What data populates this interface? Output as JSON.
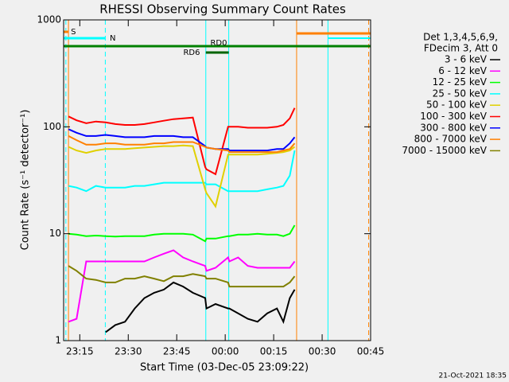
{
  "chart_data": {
    "type": "line",
    "title": "RHESSI Observing Summary Count Rates",
    "x_label": "Start Time (03-Dec-05 23:09:22)",
    "y_label": "Count Rate (s⁻¹ detector⁻¹)",
    "legend_header": [
      "Det 1,3,4,5,6,9,",
      "FDecim 3, Att 0"
    ],
    "timestamp": "21-Oct-2021 18:35",
    "log_y": true,
    "legend": "right",
    "xlim": [
      10,
      105
    ],
    "ylim": [
      1,
      1000
    ],
    "xticks": [
      {
        "value": 15,
        "label": "23:15"
      },
      {
        "value": 30,
        "label": "23:30"
      },
      {
        "value": 45,
        "label": "23:45"
      },
      {
        "value": 60,
        "label": "00:00"
      },
      {
        "value": 75,
        "label": "00:15"
      },
      {
        "value": 90,
        "label": "00:30"
      },
      {
        "value": 105,
        "label": "00:45"
      }
    ],
    "yticks": [
      1,
      10,
      100,
      1000
    ],
    "x": [
      11.5,
      14,
      17,
      20,
      23,
      26,
      29,
      32,
      35,
      38,
      41,
      44,
      47,
      50,
      53.8,
      54.2,
      57,
      60.9,
      61.3,
      64,
      67,
      70,
      73,
      76,
      78,
      80,
      81.5
    ],
    "series": [
      {
        "name": "3 - 6 keV",
        "color": "#000000",
        "values": [
          null,
          null,
          null,
          null,
          1.2,
          1.4,
          1.5,
          2,
          2.5,
          2.8,
          3,
          3.5,
          3.2,
          2.8,
          2.5,
          2,
          2.2,
          2,
          2,
          1.8,
          1.6,
          1.5,
          1.8,
          2,
          1.5,
          2.5,
          3
        ]
      },
      {
        "name": "6 - 12 keV",
        "color": "#ff00ff",
        "values": [
          1.5,
          1.6,
          5.5,
          5.5,
          5.5,
          5.5,
          5.5,
          5.5,
          5.5,
          6,
          6.5,
          7,
          6,
          5.5,
          5,
          4.5,
          4.8,
          6,
          5.5,
          6,
          5,
          4.8,
          4.8,
          4.8,
          4.8,
          4.8,
          5.5
        ]
      },
      {
        "name": "12 - 25 keV",
        "color": "#00ff00",
        "values": [
          10,
          9.8,
          9.5,
          9.6,
          9.5,
          9.4,
          9.5,
          9.5,
          9.5,
          9.8,
          10,
          10,
          10,
          9.8,
          8.5,
          9,
          9,
          9.5,
          9.5,
          9.8,
          9.8,
          10,
          9.8,
          9.8,
          9.5,
          10,
          12
        ]
      },
      {
        "name": "25 - 50 keV",
        "color": "#00ffff",
        "values": [
          28,
          27,
          25,
          28,
          27,
          27,
          27,
          28,
          28,
          29,
          30,
          30,
          30,
          30,
          30,
          29,
          29,
          25,
          25,
          25,
          25,
          25,
          26,
          27,
          28,
          35,
          60
        ]
      },
      {
        "name": "50 - 100 keV",
        "color": "#e0d000",
        "values": [
          65,
          60,
          57,
          60,
          62,
          62,
          62,
          63,
          64,
          65,
          66,
          66,
          67,
          66,
          26,
          24,
          18,
          55,
          55,
          55,
          55,
          55,
          56,
          57,
          58,
          60,
          65
        ]
      },
      {
        "name": "100 - 300 keV",
        "color": "#ff0000",
        "values": [
          125,
          115,
          108,
          112,
          110,
          106,
          104,
          104,
          106,
          110,
          114,
          118,
          120,
          122,
          42,
          40,
          36,
          100,
          100,
          100,
          98,
          98,
          98,
          100,
          104,
          120,
          150
        ]
      },
      {
        "name": "300 - 800 keV",
        "color": "#0000ff",
        "values": [
          95,
          88,
          82,
          82,
          84,
          82,
          80,
          80,
          80,
          82,
          82,
          82,
          80,
          80,
          66,
          64,
          62,
          62,
          60,
          60,
          60,
          60,
          60,
          62,
          62,
          70,
          80
        ]
      },
      {
        "name": "800 - 7000 keV",
        "color": "#ff8000",
        "values": [
          82,
          75,
          68,
          68,
          70,
          70,
          68,
          68,
          68,
          70,
          70,
          72,
          72,
          72,
          65,
          64,
          62,
          60,
          58,
          58,
          58,
          58,
          58,
          58,
          60,
          62,
          70
        ]
      },
      {
        "name": "7000 - 15000 keV",
        "color": "#808000",
        "values": [
          5,
          4.5,
          3.8,
          3.7,
          3.5,
          3.5,
          3.8,
          3.8,
          4,
          3.8,
          3.6,
          4,
          4,
          4.2,
          4,
          3.8,
          3.8,
          3.5,
          3.2,
          3.2,
          3.2,
          3.2,
          3.2,
          3.2,
          3.2,
          3.5,
          4
        ]
      }
    ],
    "vlines": [
      {
        "x": 10.7,
        "color": "#00ffff",
        "dashed": true
      },
      {
        "x": 11.5,
        "color": "#ff8000",
        "dashed": false
      },
      {
        "x": 22.9,
        "color": "#00ffff",
        "dashed": true
      },
      {
        "x": 54.0,
        "color": "#00ffff",
        "dashed": false
      },
      {
        "x": 61.1,
        "color": "#00ffff",
        "dashed": false
      },
      {
        "x": 82.1,
        "color": "#ff8000",
        "dashed": false
      },
      {
        "x": 91.8,
        "color": "#00ffff",
        "dashed": false
      },
      {
        "x": 104.4,
        "color": "#ff8000",
        "dashed": true
      }
    ],
    "flags": [
      {
        "label": "S",
        "start": 10,
        "end": 11.5,
        "color": "#ff8000"
      },
      {
        "label": "N",
        "start": 10,
        "end": 22.9,
        "color": "#00ffff"
      },
      {
        "label": "RD0",
        "start": 10,
        "end": 105,
        "color": "#008000"
      },
      {
        "label": "RD6",
        "start": 54.0,
        "end": 61.1,
        "color": "#006400"
      }
    ],
    "orange_bar": {
      "start": 82.1,
      "end": 105,
      "color": "#ff8000"
    },
    "cyan_bar": {
      "start": 91.8,
      "end": 105,
      "color": "#00ffff"
    }
  }
}
